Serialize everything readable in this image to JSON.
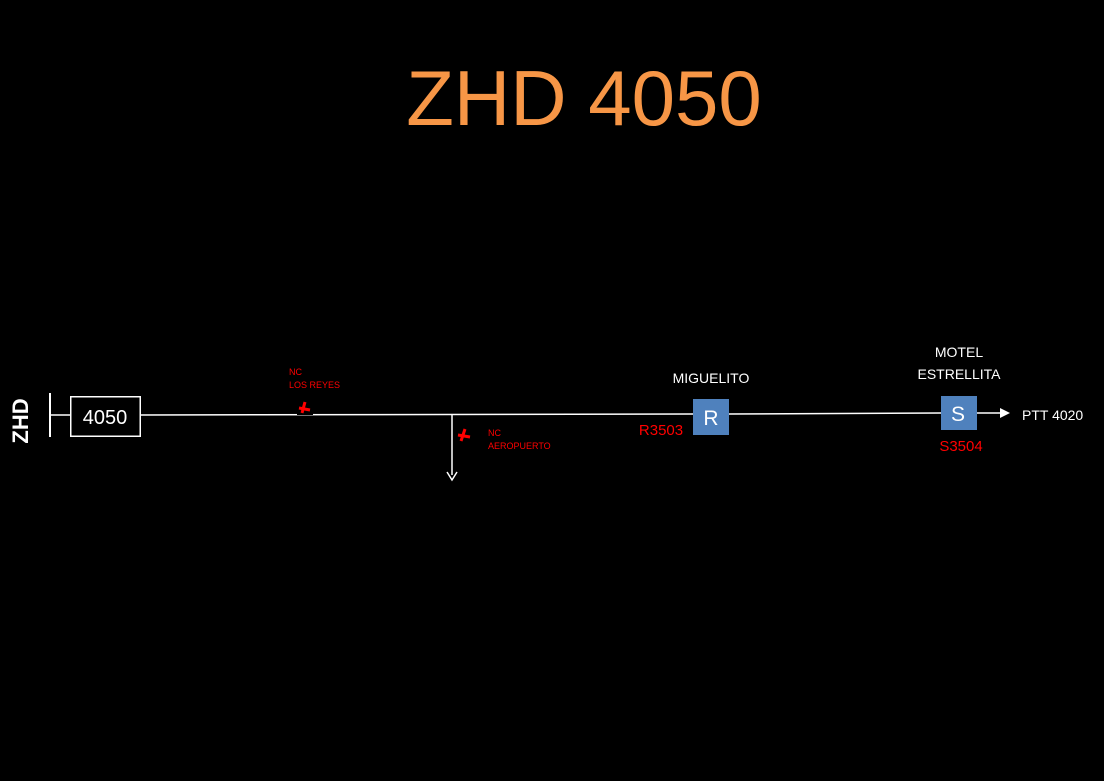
{
  "title": "ZHD 4050",
  "source": {
    "label": "ZHD"
  },
  "feeder": {
    "label": "4050"
  },
  "switches": [
    {
      "line1": "NC",
      "line2": "LOS REYES"
    },
    {
      "line1": "NC",
      "line2": "AEROPUERTO"
    }
  ],
  "devices": [
    {
      "symbol": "R",
      "name_line1": "MIGUELITO",
      "name_line2": "",
      "code": "R3503",
      "fill": "#4f81bd"
    },
    {
      "symbol": "S",
      "name_line1": "MOTEL",
      "name_line2": "ESTRELLITA",
      "code": "S3504",
      "fill": "#4f81bd"
    }
  ],
  "destination": {
    "label": "PTT 4020"
  },
  "colors": {
    "title": "#f79646",
    "line": "#ffffff",
    "switch": "#ff0000",
    "device_fill": "#4f81bd"
  }
}
